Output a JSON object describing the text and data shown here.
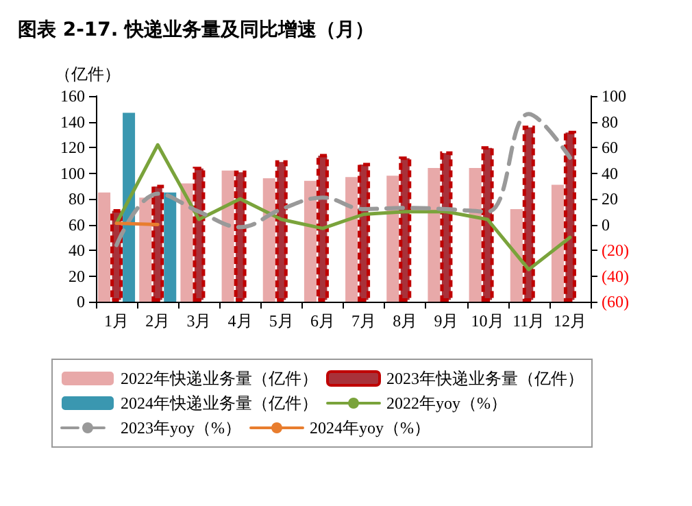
{
  "chart_data": {
    "type": "bar",
    "title": "图表 2-17. 快递业务量及同比增速（月）",
    "ylabel": "（亿件）",
    "categories": [
      "1月",
      "2月",
      "3月",
      "4月",
      "5月",
      "6月",
      "7月",
      "8月",
      "9月",
      "10月",
      "11月",
      "12月"
    ],
    "series": [
      {
        "name": "2022年快递业务量（亿件）",
        "color": "#e8a9a9",
        "values": [
          85,
          81,
          92,
          102,
          96,
          94,
          97,
          98,
          104,
          104,
          72,
          91
        ]
      },
      {
        "name": "2023年快递业务量（亿件）",
        "color": "#a8323a",
        "line_style": "dashed",
        "values": [
          72,
          91,
          105,
          102,
          110,
          115,
          108,
          113,
          117,
          121,
          137,
          133
        ]
      },
      {
        "name": "2024年快递业务量（亿件）",
        "color": "#3a97b0",
        "values": [
          147,
          85,
          null,
          null,
          null,
          null,
          null,
          null,
          null,
          null,
          null,
          null
        ]
      },
      {
        "name": "2022年yoy（%）",
        "type": "line",
        "axis": "y2",
        "color": "#7aa33b",
        "line_style": "solid",
        "values": [
          1,
          62,
          4,
          20,
          4,
          -3,
          8,
          10,
          10,
          4,
          -35,
          -10
        ]
      },
      {
        "name": "2023年yoy（%）",
        "type": "line",
        "axis": "y2",
        "color": "#999999",
        "line_style": "dashed",
        "values": [
          -16,
          24,
          10,
          -2,
          12,
          21,
          12,
          13,
          12,
          10,
          86,
          52
        ]
      },
      {
        "name": "2024年yoy（%）",
        "type": "line",
        "axis": "y2",
        "color": "#e87d2e",
        "line_style": "solid",
        "values": [
          1,
          0,
          null,
          null,
          null,
          null,
          null,
          null,
          null,
          null,
          null,
          null
        ]
      }
    ],
    "ylim": [
      0,
      160
    ],
    "yticks": [
      0,
      20,
      40,
      60,
      80,
      100,
      120,
      140,
      160
    ],
    "y2lim": [
      -60,
      100
    ],
    "y2ticks": [
      {
        "value": -60,
        "label": "(60)"
      },
      {
        "value": -40,
        "label": "(40)"
      },
      {
        "value": -20,
        "label": "(20)"
      },
      0,
      20,
      40,
      60,
      80,
      100
    ],
    "grid": false,
    "legend": "bottom",
    "marker": "none"
  }
}
